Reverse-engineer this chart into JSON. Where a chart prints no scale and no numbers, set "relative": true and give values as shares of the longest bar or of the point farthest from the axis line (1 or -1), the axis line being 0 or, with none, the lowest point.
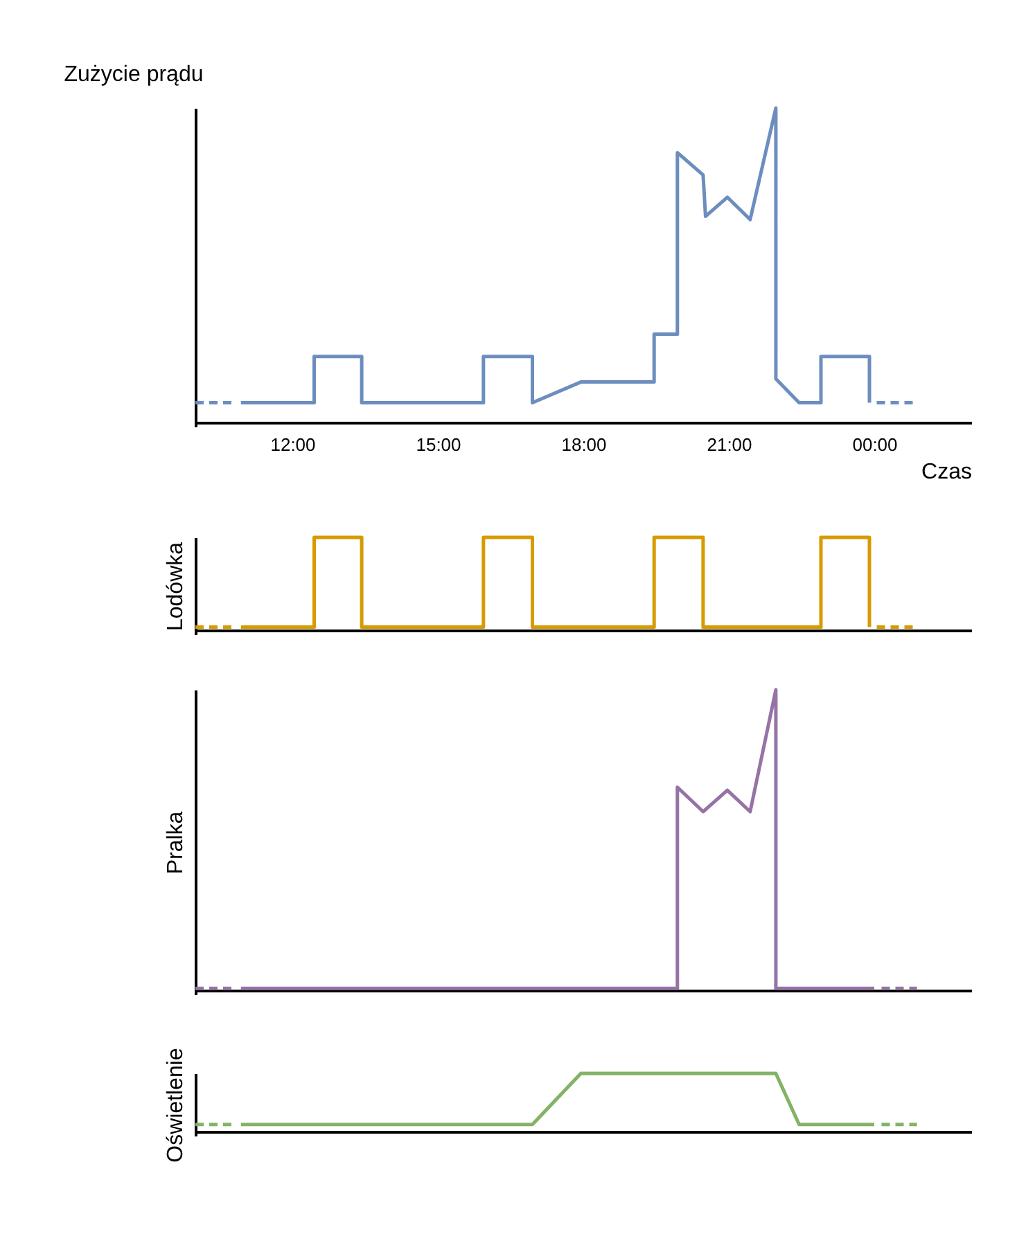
{
  "chart_data": [
    {
      "type": "line",
      "relative": true,
      "ylabel": "Zużycie prądu",
      "xlabel": "Czas",
      "xlim": [
        10,
        26
      ],
      "xticks": [
        {
          "value": 12,
          "label": "12:00"
        },
        {
          "value": 15,
          "label": "15:00"
        },
        {
          "value": 18,
          "label": "18:00"
        },
        {
          "value": 21,
          "label": "21:00"
        },
        {
          "value": 24,
          "label": "00:00"
        }
      ],
      "tick_labels": "x",
      "grid": false,
      "legend": false,
      "marker": "none",
      "series": [
        {
          "color": "#6c8ebf",
          "line_style": "dashed",
          "x": [
            10.0,
            10.8
          ],
          "values": [
            0.075,
            0.075
          ]
        },
        {
          "color": "#6c8ebf",
          "line_style": "solid",
          "x": [
            10.94,
            12.45,
            12.45,
            13.43,
            13.43,
            15.94,
            15.94,
            16.95,
            16.95,
            17.95,
            19.46,
            19.46,
            19.94,
            19.94,
            20.47,
            20.52,
            20.97,
            21.44,
            21.97,
            21.97,
            22.45,
            22.9,
            22.9,
            23.9,
            23.9
          ],
          "values": [
            0.075,
            0.075,
            0.22,
            0.22,
            0.075,
            0.075,
            0.22,
            0.22,
            0.075,
            0.14,
            0.14,
            0.29,
            0.29,
            0.86,
            0.79,
            0.66,
            0.72,
            0.65,
            1,
            0.15,
            0.075,
            0.075,
            0.22,
            0.22,
            0.075
          ]
        },
        {
          "color": "#6c8ebf",
          "line_style": "dashed",
          "x": [
            24.05,
            24.88
          ],
          "values": [
            0.075,
            0.075
          ]
        }
      ]
    },
    {
      "type": "line",
      "relative": true,
      "ylabel": "Lodówka",
      "xlim": [
        10,
        26
      ],
      "tick_labels": false,
      "grid": false,
      "legend": false,
      "marker": "none",
      "series": [
        {
          "color": "#d79b00",
          "line_style": "dashed",
          "x": [
            10.0,
            10.8
          ],
          "values": [
            0.075,
            0.075
          ]
        },
        {
          "color": "#d79b00",
          "line_style": "solid",
          "x": [
            10.94,
            12.45,
            12.45,
            13.43,
            13.43,
            15.94,
            15.94,
            16.95,
            16.95,
            19.46,
            19.46,
            20.47,
            20.47,
            22.9,
            22.9,
            23.9,
            23.9
          ],
          "values": [
            0.075,
            0.075,
            1,
            1,
            0.075,
            0.075,
            1,
            1,
            0.075,
            0.075,
            1,
            1,
            0.075,
            0.075,
            1,
            1,
            0.075
          ]
        },
        {
          "color": "#d79b00",
          "line_style": "dashed",
          "x": [
            24.05,
            24.88
          ],
          "values": [
            0.075,
            0.075
          ]
        }
      ]
    },
    {
      "type": "line",
      "relative": true,
      "ylabel": "Pralka",
      "xlim": [
        10,
        26
      ],
      "tick_labels": false,
      "grid": false,
      "legend": false,
      "marker": "none",
      "series": [
        {
          "color": "#9673a6",
          "line_style": "dashed",
          "x": [
            10.0,
            10.8
          ],
          "values": [
            0.02,
            0.02
          ]
        },
        {
          "color": "#9673a6",
          "line_style": "solid",
          "x": [
            10.94,
            19.94,
            19.94,
            20.47,
            20.97,
            21.44,
            21.97,
            21.97,
            24.0
          ],
          "values": [
            0.02,
            0.02,
            0.68,
            0.6,
            0.67,
            0.6,
            1,
            0.02,
            0.02
          ]
        },
        {
          "color": "#9673a6",
          "line_style": "dashed",
          "x": [
            24.15,
            24.88
          ],
          "values": [
            0.02,
            0.02
          ]
        }
      ]
    },
    {
      "type": "line",
      "relative": true,
      "ylabel": "Oświetlenie",
      "xlim": [
        10,
        26
      ],
      "tick_labels": false,
      "grid": false,
      "legend": false,
      "marker": "none",
      "series": [
        {
          "color": "#82b366",
          "line_style": "dashed",
          "x": [
            10.0,
            10.8
          ],
          "values": [
            0.18,
            0.18
          ]
        },
        {
          "color": "#82b366",
          "line_style": "solid",
          "x": [
            10.94,
            16.95,
            17.95,
            21.97,
            22.45,
            24.0
          ],
          "values": [
            0.18,
            0.18,
            1,
            1,
            0.18,
            0.18
          ]
        },
        {
          "color": "#82b366",
          "line_style": "dashed",
          "x": [
            24.15,
            24.88
          ],
          "values": [
            0.18,
            0.18
          ]
        }
      ]
    }
  ]
}
